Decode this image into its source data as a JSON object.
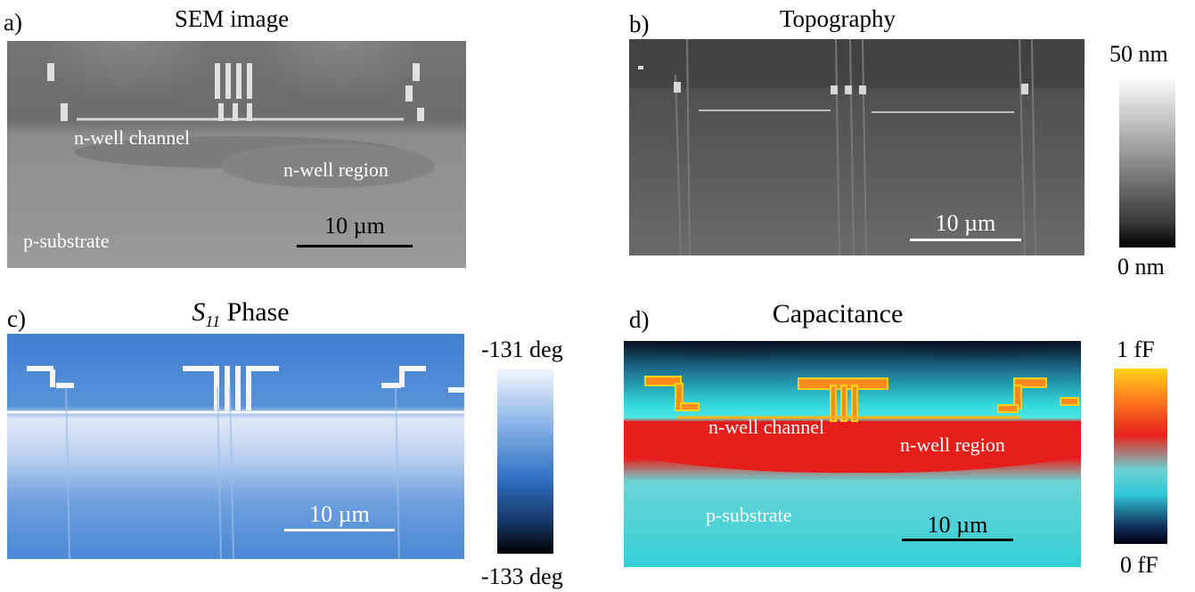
{
  "panels": {
    "a": {
      "label": "a)",
      "title": "SEM image",
      "annotations": {
        "n_well_channel": "n-well channel",
        "n_well_region": "n-well region",
        "p_substrate": "p-substrate"
      },
      "scale_bar": "10 µm"
    },
    "b": {
      "label": "b)",
      "title": "Topography",
      "scale_bar": "10 µm",
      "colorbar": {
        "max": "50 nm",
        "min": "0 nm"
      }
    },
    "c": {
      "label": "c)",
      "title_symbol": "S",
      "title_subscript": "11",
      "title_rest": " Phase",
      "scale_bar": "10 µm",
      "colorbar": {
        "max": "-131 deg",
        "min": "-133 deg"
      }
    },
    "d": {
      "label": "d)",
      "title": "Capacitance",
      "annotations": {
        "n_well_channel": "n-well channel",
        "n_well_region": "n-well region",
        "p_substrate": "p-substrate"
      },
      "scale_bar": "10 µm",
      "colorbar": {
        "max": "1 fF",
        "min": "0 fF"
      }
    }
  },
  "colors": {
    "sem_gray": "#8a8a8a",
    "topo_gray": "#5c5c5c",
    "phase_blue": "#3a78c8",
    "cap_cyan": "#33d6dc",
    "cap_red": "#e8231c",
    "cap_yellow": "#ffd21a"
  }
}
